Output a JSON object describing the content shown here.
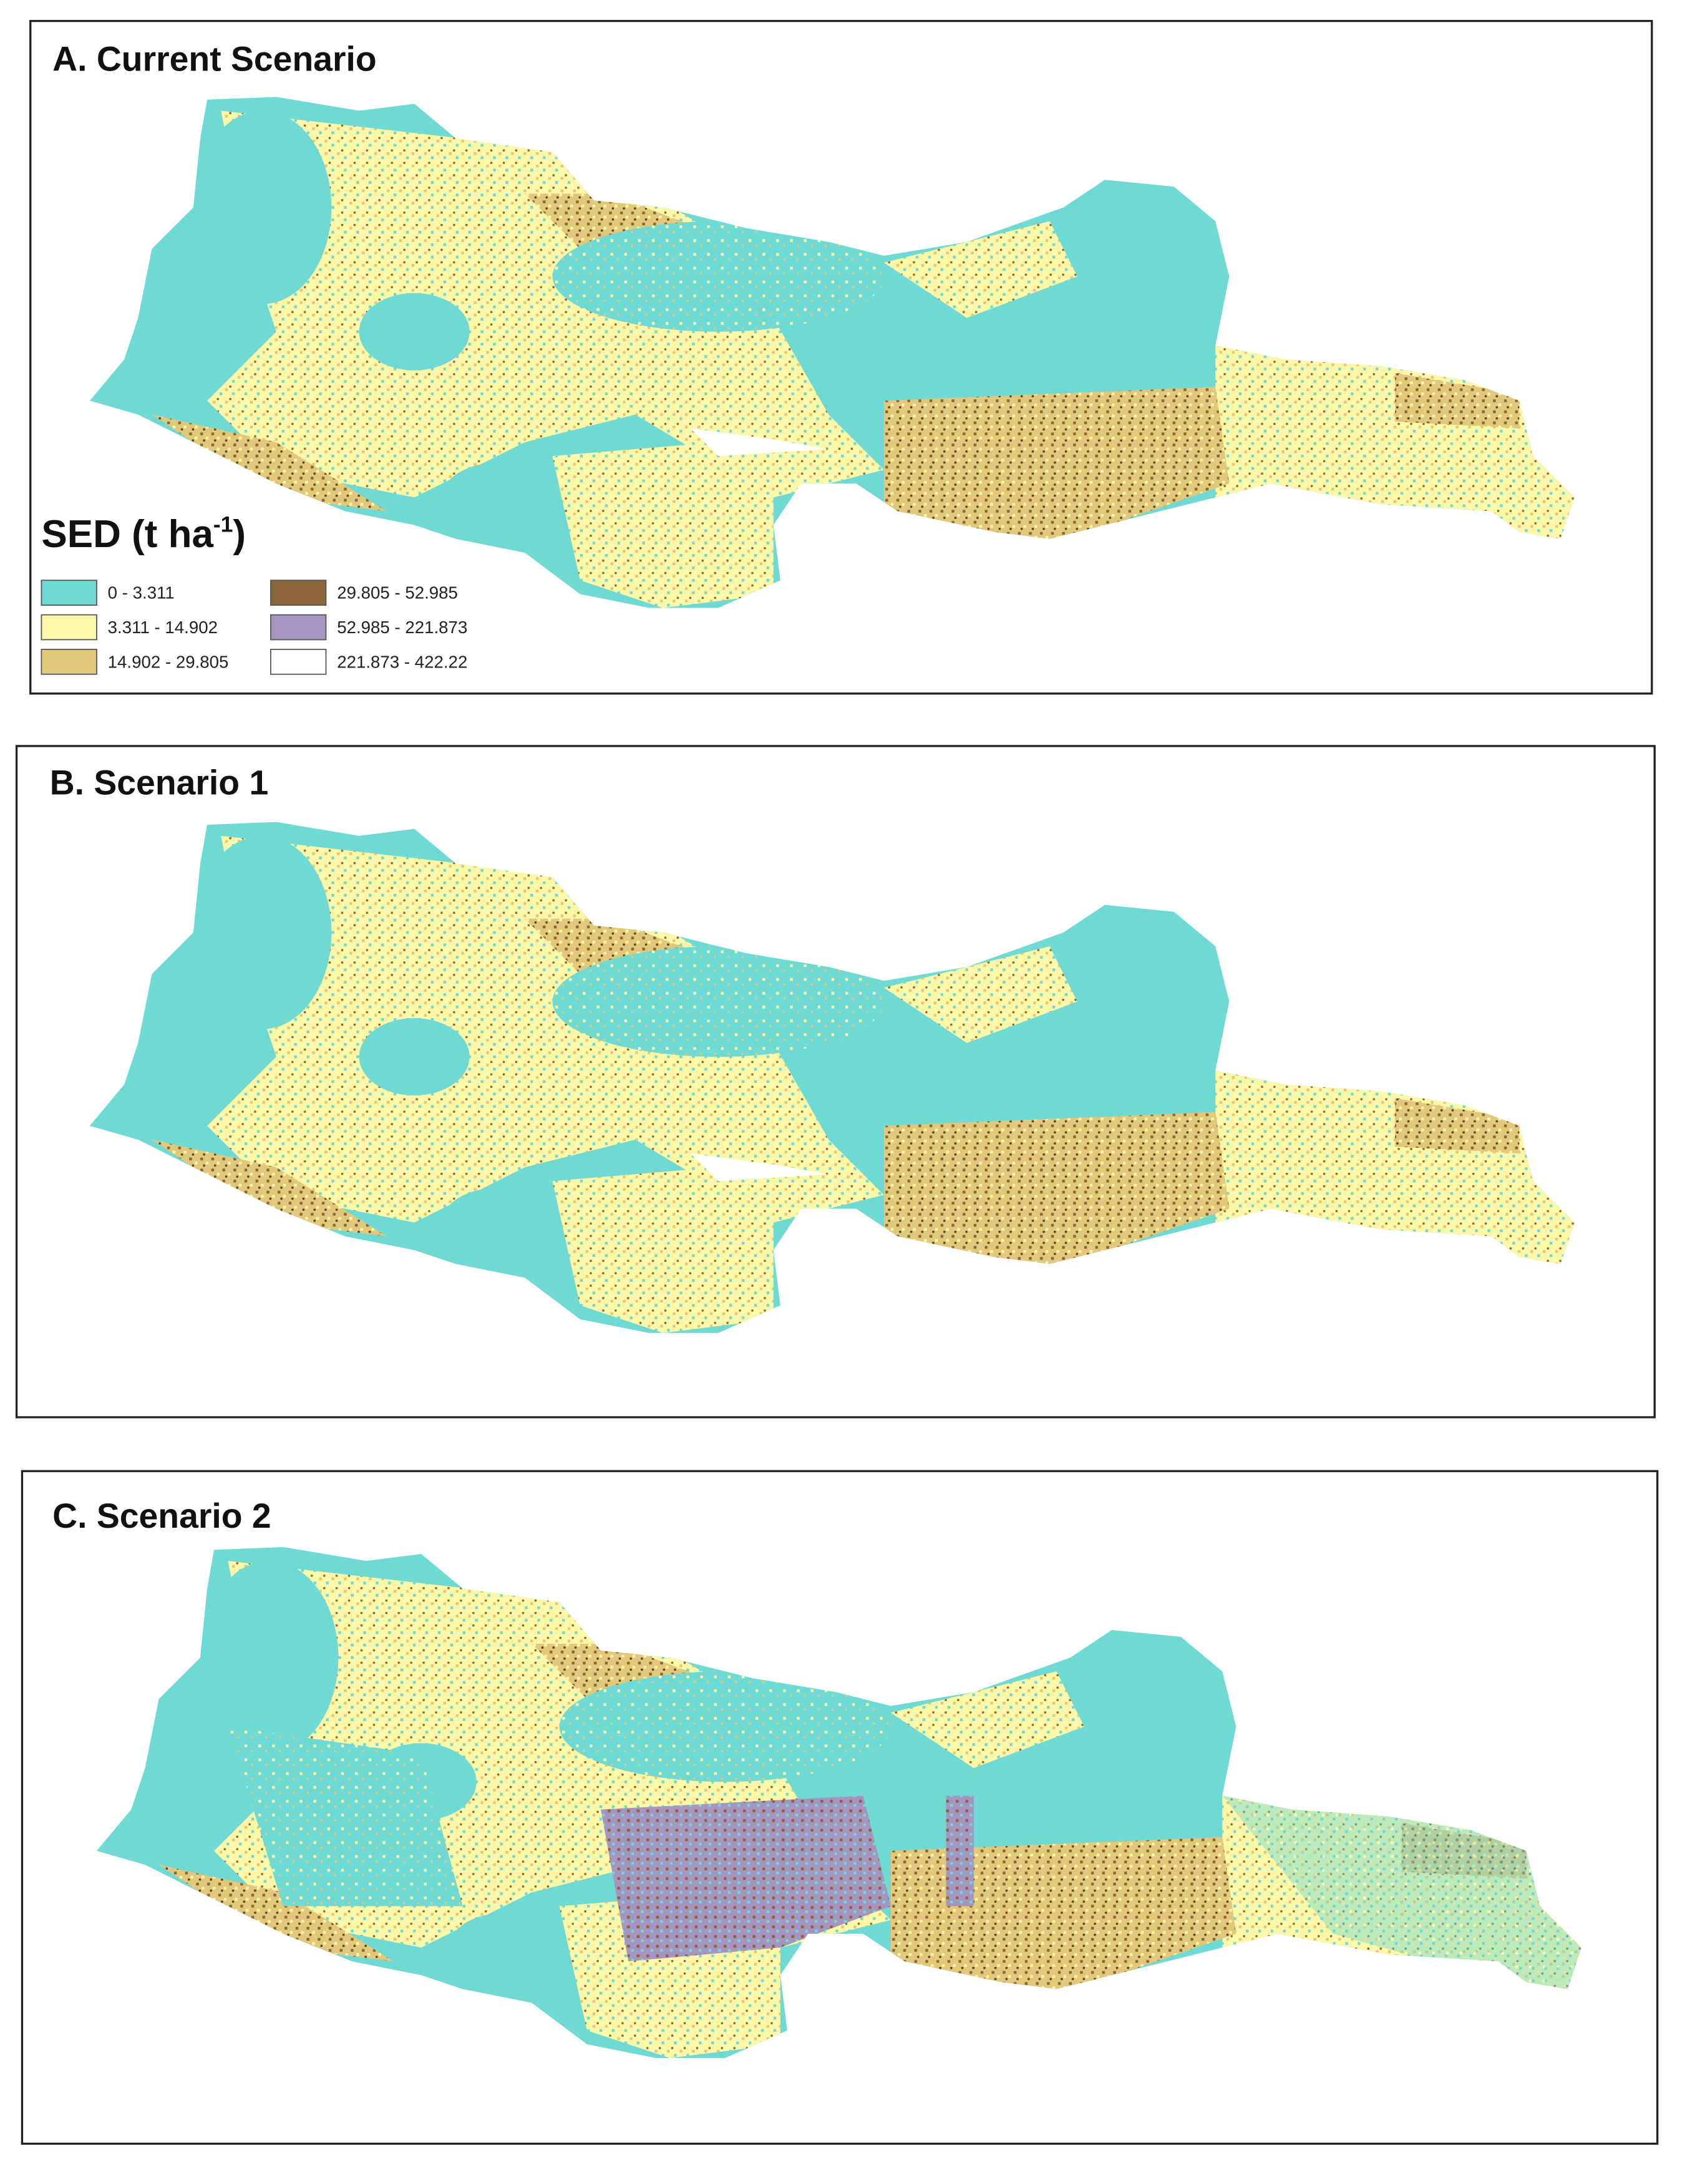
{
  "panels": [
    {
      "title": "A. Current Scenario"
    },
    {
      "title": "B. Scenario 1"
    },
    {
      "title": "C. Scenario 2"
    }
  ],
  "legend": {
    "title": "SED (t ha",
    "title_superscript": "-1",
    "title_end": ")",
    "items": [
      {
        "label": "0 - 3.311",
        "color": "#6fd9d3"
      },
      {
        "label": "3.311 - 14.902",
        "color": "#fdf7a8"
      },
      {
        "label": "14.902 - 29.805",
        "color": "#e2c87a"
      },
      {
        "label": "29.805 - 52.985",
        "color": "#8b6437"
      },
      {
        "label": "52.985 - 221.873",
        "color": "#a695c0"
      },
      {
        "label": "221.873 - 422.22",
        "color": "#ffffff"
      }
    ]
  }
}
